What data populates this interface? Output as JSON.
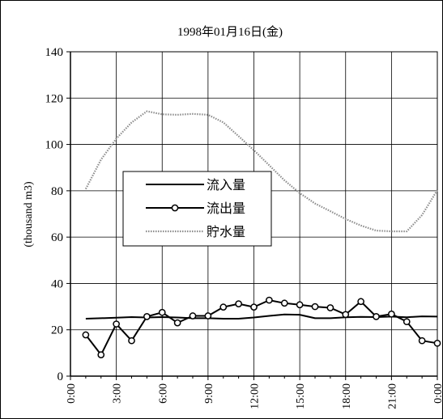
{
  "chart_data": {
    "type": "line",
    "title": "1998年01月16日(金)",
    "ylabel": "(thousand m3)",
    "xlabel": "",
    "ylim": [
      0,
      140
    ],
    "yticks": [
      0,
      20,
      40,
      60,
      80,
      100,
      120,
      140
    ],
    "x_tick_labels": [
      "0:00",
      "3:00",
      "6:00",
      "9:00",
      "12:00",
      "15:00",
      "18:00",
      "21:00",
      "0:00"
    ],
    "x_range_hours": [
      0,
      24
    ],
    "grid": true,
    "legend_position": "middle-left",
    "series": [
      {
        "name": "流入量",
        "style": "solid-black",
        "x": [
          1,
          2,
          3,
          4,
          5,
          6,
          7,
          8,
          9,
          10,
          11,
          12,
          13,
          14,
          15,
          16,
          17,
          18,
          19,
          20,
          21,
          22,
          23,
          24
        ],
        "values": [
          24.8,
          25.0,
          25.2,
          25.5,
          25.3,
          25.5,
          25.3,
          25.0,
          25.0,
          24.8,
          24.8,
          25.3,
          26.0,
          26.6,
          26.5,
          25.0,
          25.0,
          25.4,
          25.6,
          25.5,
          25.7,
          25.4,
          25.8,
          25.7
        ]
      },
      {
        "name": "流出量",
        "style": "black-line-circle-markers",
        "x": [
          1,
          2,
          3,
          4,
          5,
          6,
          7,
          8,
          9,
          10,
          11,
          12,
          13,
          14,
          15,
          16,
          17,
          18,
          19,
          20,
          21,
          22,
          23,
          24
        ],
        "values": [
          17.8,
          9.2,
          22.5,
          15.3,
          25.7,
          27.5,
          23.0,
          26.0,
          26.0,
          29.8,
          31.2,
          29.8,
          32.8,
          31.5,
          30.8,
          30.0,
          29.5,
          26.6,
          32.2,
          25.7,
          26.8,
          23.5,
          15.3,
          14.2
        ]
      },
      {
        "name": "貯水量",
        "style": "gray-dotted",
        "x": [
          1,
          2,
          3,
          4,
          5,
          6,
          7,
          8,
          9,
          10,
          11,
          12,
          13,
          14,
          15,
          16,
          17,
          18,
          19,
          20,
          21,
          22,
          23,
          24
        ],
        "values": [
          80.8,
          93.5,
          102.5,
          109.5,
          114.3,
          113.0,
          112.8,
          113.2,
          112.8,
          109.5,
          103.6,
          97.5,
          91.0,
          84.5,
          79.0,
          74.5,
          71.2,
          67.8,
          65.0,
          62.8,
          62.5,
          62.5,
          69.5,
          80.3
        ]
      }
    ]
  }
}
